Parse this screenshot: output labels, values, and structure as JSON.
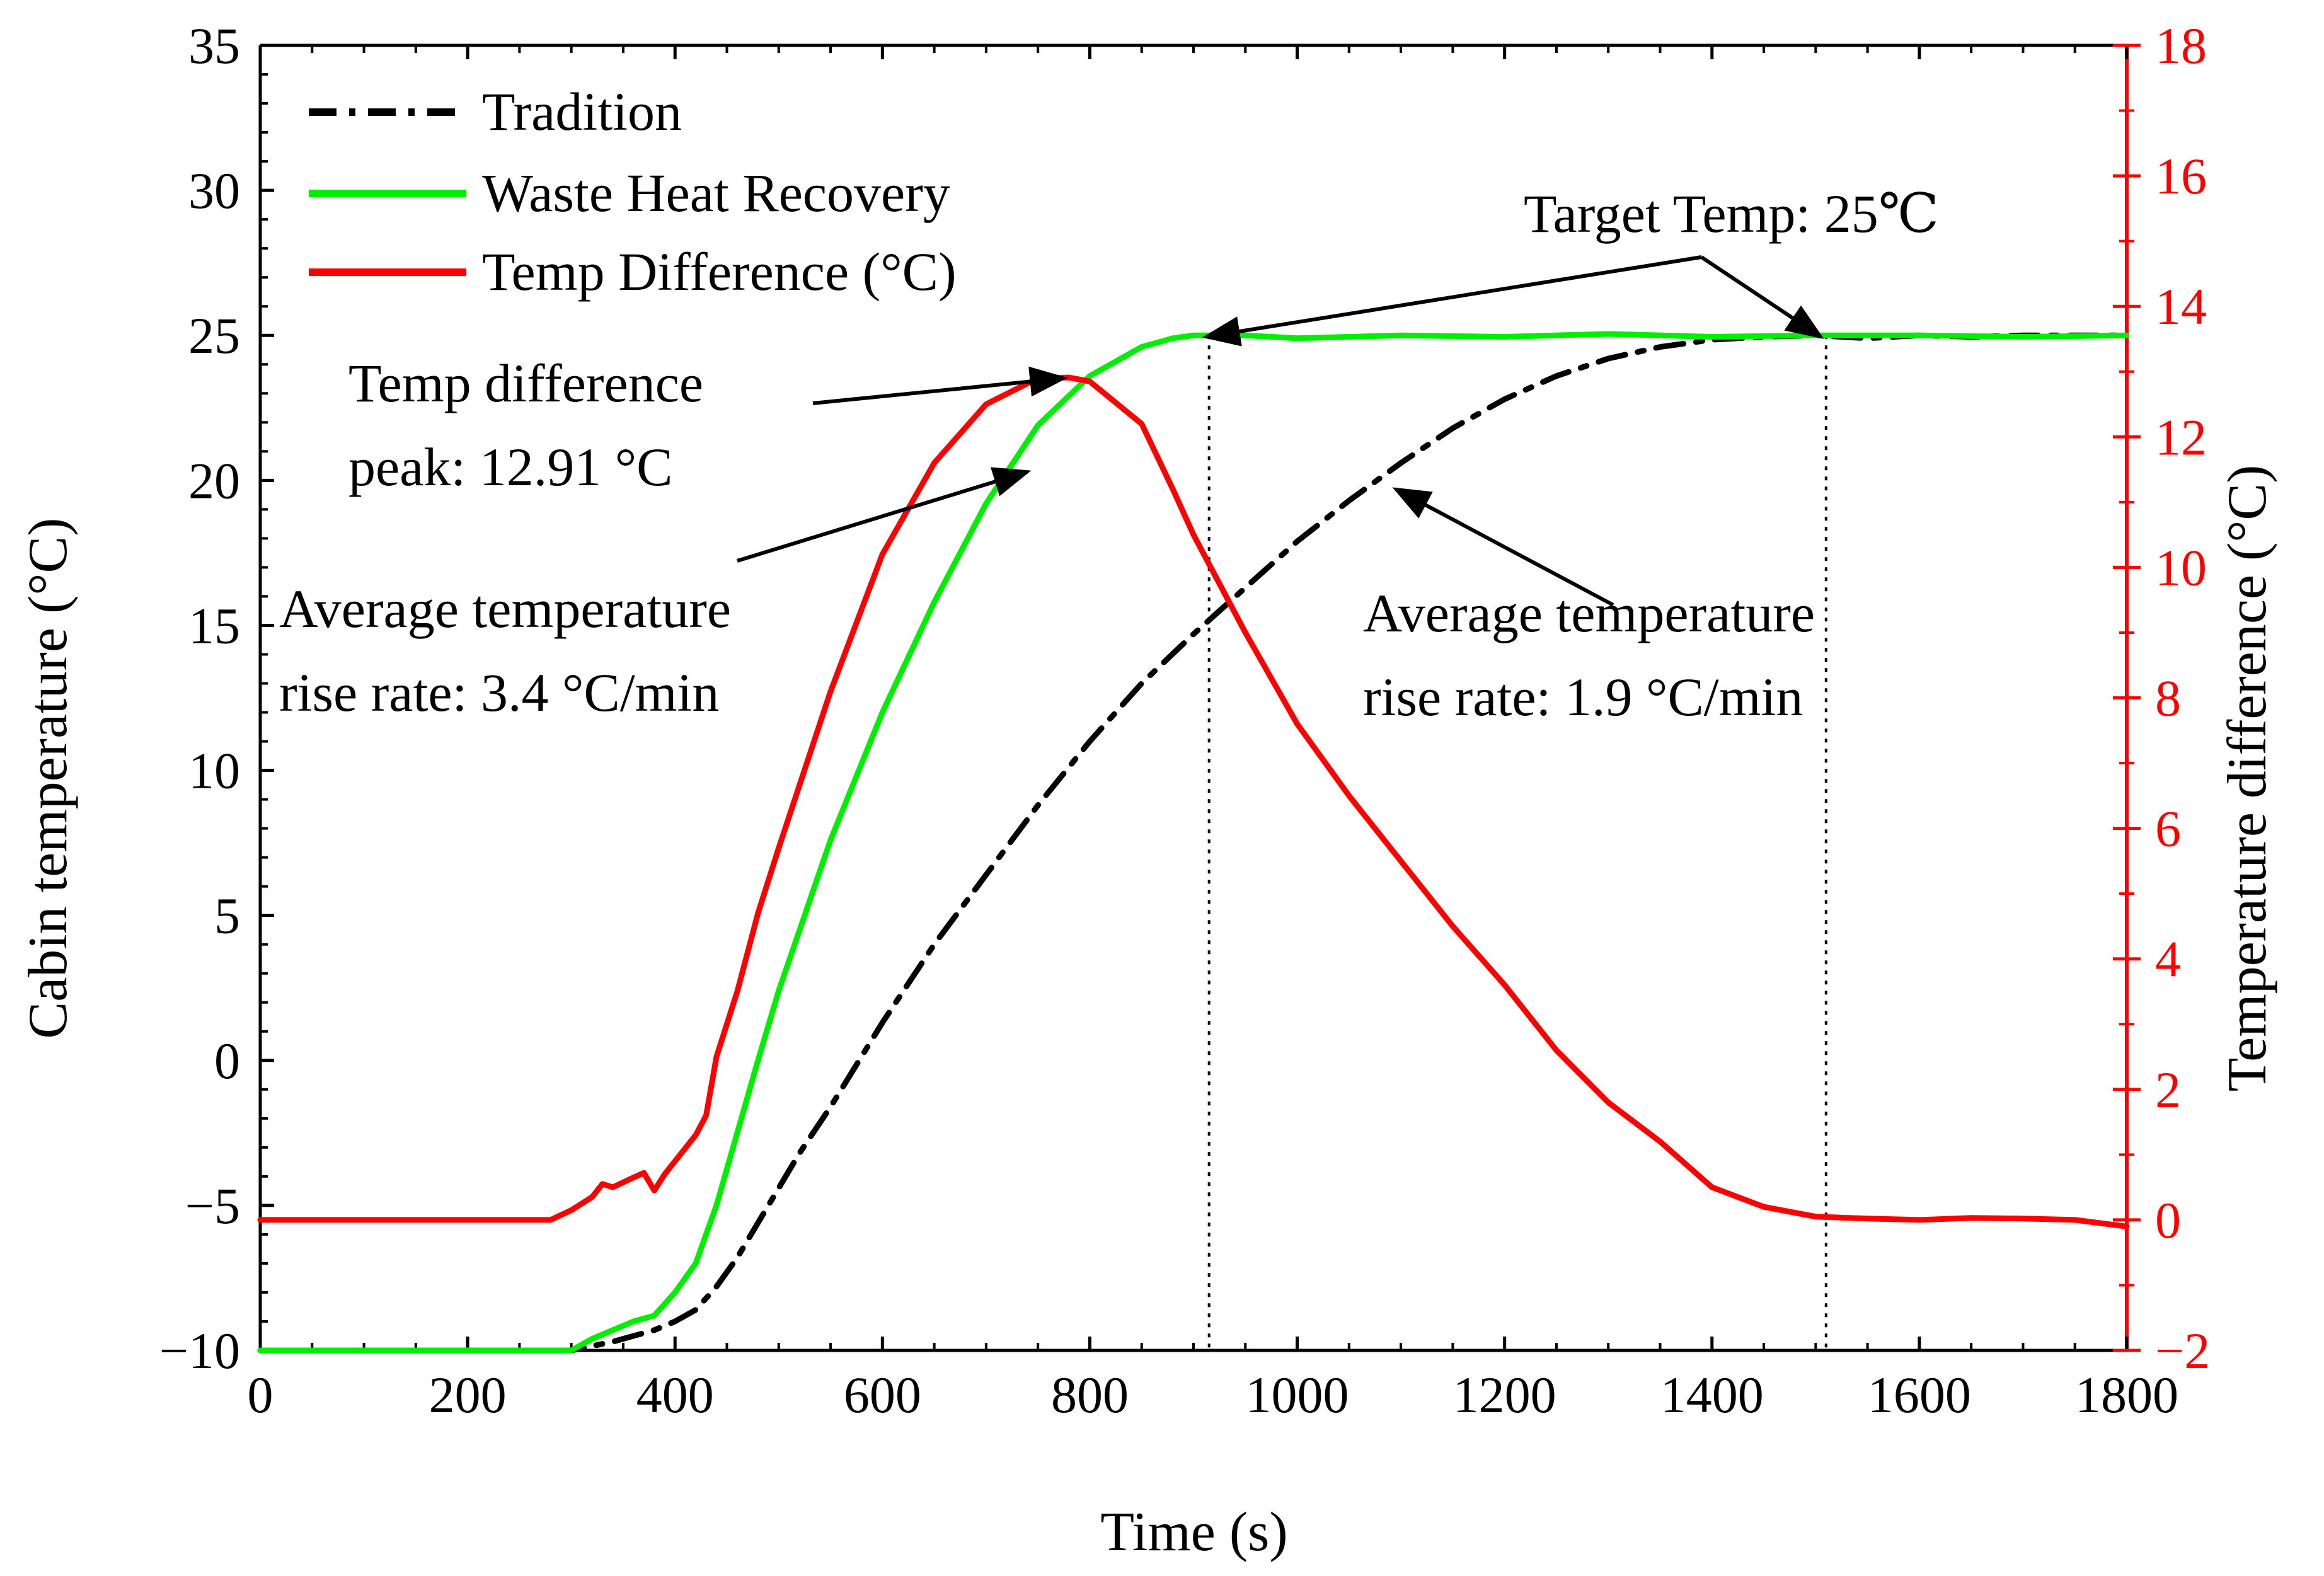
{
  "chart_data": {
    "type": "line",
    "title": "",
    "xlabel": "Time (s)",
    "ylabel_left": "Cabin temperature (°C)",
    "ylabel_right": "Temperature difference (°C)",
    "xlim": [
      0,
      1800
    ],
    "ylim_left": [
      -10,
      35
    ],
    "ylim_right": [
      -2,
      18
    ],
    "x_ticks": [
      0,
      200,
      400,
      600,
      800,
      1000,
      1200,
      1400,
      1600,
      1800
    ],
    "y_ticks_left": [
      -10,
      -5,
      0,
      5,
      10,
      15,
      20,
      25,
      30,
      35
    ],
    "y_ticks_right": [
      -2,
      0,
      2,
      4,
      6,
      8,
      10,
      12,
      14,
      16,
      18
    ],
    "x_tick_labels": [
      "0",
      "200",
      "400",
      "600",
      "800",
      "1000",
      "1200",
      "1400",
      "1600",
      "1800"
    ],
    "y_tick_labels_left": [
      "−10",
      "−5",
      "0",
      "5",
      "10",
      "15",
      "20",
      "25",
      "30",
      "35"
    ],
    "y_tick_labels_right": [
      "−2",
      "0",
      "2",
      "4",
      "6",
      "8",
      "10",
      "12",
      "14",
      "16",
      "18"
    ],
    "grid": false,
    "legend_position": "top-left",
    "series": [
      {
        "name": "Tradition",
        "axis": "left",
        "color": "#000000",
        "style": "dash-dot",
        "points": [
          [
            0,
            -10
          ],
          [
            100,
            -10
          ],
          [
            200,
            -10
          ],
          [
            300,
            -10
          ],
          [
            340,
            -9.7
          ],
          [
            380,
            -9.3
          ],
          [
            400,
            -9
          ],
          [
            420,
            -8.6
          ],
          [
            440,
            -7.8
          ],
          [
            460,
            -6.8
          ],
          [
            480,
            -5.6
          ],
          [
            500,
            -4.4
          ],
          [
            520,
            -3.2
          ],
          [
            550,
            -1.6
          ],
          [
            600,
            1.3
          ],
          [
            650,
            4
          ],
          [
            700,
            6.4
          ],
          [
            750,
            8.8
          ],
          [
            800,
            11
          ],
          [
            850,
            13
          ],
          [
            900,
            14.7
          ],
          [
            950,
            16.3
          ],
          [
            1000,
            17.9
          ],
          [
            1050,
            19.3
          ],
          [
            1100,
            20.6
          ],
          [
            1150,
            21.8
          ],
          [
            1200,
            22.8
          ],
          [
            1250,
            23.6
          ],
          [
            1300,
            24.2
          ],
          [
            1350,
            24.6
          ],
          [
            1400,
            24.85
          ],
          [
            1450,
            24.95
          ],
          [
            1500,
            25
          ],
          [
            1550,
            24.9
          ],
          [
            1600,
            25
          ],
          [
            1650,
            24.95
          ],
          [
            1700,
            25
          ],
          [
            1750,
            25
          ],
          [
            1800,
            25
          ]
        ]
      },
      {
        "name": "Waste Heat Recovery",
        "axis": "left",
        "color": "#00ee00",
        "style": "solid",
        "points": [
          [
            0,
            -10
          ],
          [
            100,
            -10
          ],
          [
            200,
            -10
          ],
          [
            300,
            -10
          ],
          [
            320,
            -9.6
          ],
          [
            340,
            -9.3
          ],
          [
            360,
            -9
          ],
          [
            380,
            -8.8
          ],
          [
            400,
            -8
          ],
          [
            420,
            -7
          ],
          [
            440,
            -5
          ],
          [
            460,
            -2.5
          ],
          [
            480,
            0
          ],
          [
            500,
            2.4
          ],
          [
            550,
            7.6
          ],
          [
            600,
            12
          ],
          [
            650,
            15.8
          ],
          [
            700,
            19.2
          ],
          [
            750,
            21.9
          ],
          [
            800,
            23.6
          ],
          [
            850,
            24.6
          ],
          [
            880,
            24.9
          ],
          [
            900,
            25
          ],
          [
            950,
            25
          ],
          [
            1000,
            24.9
          ],
          [
            1100,
            25
          ],
          [
            1200,
            24.95
          ],
          [
            1300,
            25.05
          ],
          [
            1400,
            24.95
          ],
          [
            1500,
            25
          ],
          [
            1600,
            25
          ],
          [
            1700,
            24.95
          ],
          [
            1800,
            25
          ]
        ]
      },
      {
        "name": "Temp Difference (°C)",
        "axis": "right",
        "color": "#ff0000",
        "style": "solid",
        "points": [
          [
            0,
            0
          ],
          [
            100,
            0
          ],
          [
            200,
            0
          ],
          [
            280,
            0
          ],
          [
            300,
            0.15
          ],
          [
            320,
            0.35
          ],
          [
            330,
            0.55
          ],
          [
            340,
            0.5
          ],
          [
            360,
            0.65
          ],
          [
            370,
            0.72
          ],
          [
            380,
            0.45
          ],
          [
            390,
            0.7
          ],
          [
            400,
            0.9
          ],
          [
            420,
            1.3
          ],
          [
            430,
            1.6
          ],
          [
            440,
            2.5
          ],
          [
            460,
            3.5
          ],
          [
            480,
            4.7
          ],
          [
            500,
            5.7
          ],
          [
            550,
            8.1
          ],
          [
            600,
            10.2
          ],
          [
            650,
            11.6
          ],
          [
            700,
            12.5
          ],
          [
            750,
            12.9
          ],
          [
            780,
            12.91
          ],
          [
            800,
            12.85
          ],
          [
            850,
            12.2
          ],
          [
            880,
            11.2
          ],
          [
            900,
            10.5
          ],
          [
            950,
            9
          ],
          [
            1000,
            7.6
          ],
          [
            1050,
            6.5
          ],
          [
            1100,
            5.5
          ],
          [
            1150,
            4.5
          ],
          [
            1200,
            3.6
          ],
          [
            1250,
            2.6
          ],
          [
            1300,
            1.8
          ],
          [
            1350,
            1.2
          ],
          [
            1400,
            0.5
          ],
          [
            1450,
            0.2
          ],
          [
            1500,
            0.05
          ],
          [
            1550,
            0.02
          ],
          [
            1600,
            0.0
          ],
          [
            1650,
            0.03
          ],
          [
            1700,
            0.02
          ],
          [
            1750,
            0.0
          ],
          [
            1800,
            -0.1
          ]
        ]
      }
    ],
    "reference_lines_x": [
      915,
      1510
    ],
    "annotations": [
      {
        "id": "target",
        "lines": [
          "Target Temp: 25℃"
        ]
      },
      {
        "id": "peak",
        "lines": [
          "Temp difference",
          "peak: 12.91 °C"
        ]
      },
      {
        "id": "rate-whr",
        "lines": [
          "Average temperature",
          "rise rate: 3.4 °C/min"
        ]
      },
      {
        "id": "rate-trad",
        "lines": [
          "Average temperature",
          "rise rate: 1.9 °C/min"
        ]
      }
    ]
  },
  "colors": {
    "axis": "#000000",
    "right_axis": "#ff0000",
    "tradition": "#000000",
    "waste_heat": "#00ee00",
    "difference": "#ff0000"
  }
}
